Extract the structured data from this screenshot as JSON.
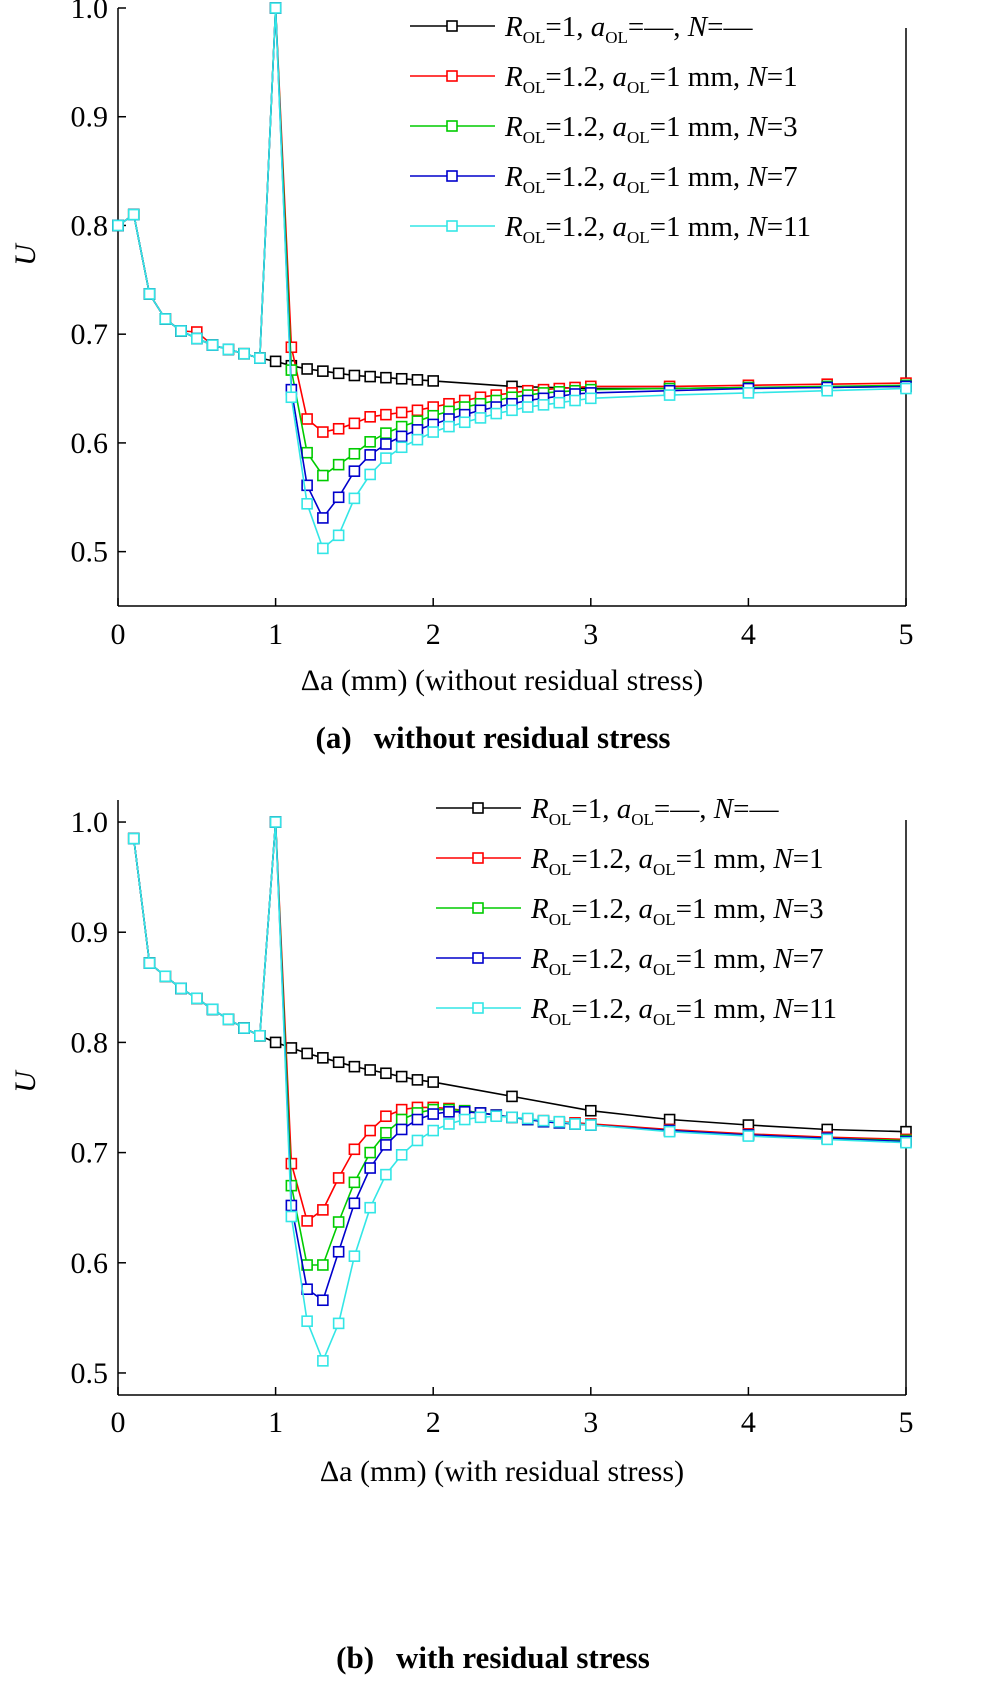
{
  "panels": [
    {
      "caption_letter": "(a)",
      "caption_text": "without residual stress",
      "chart_data": {
        "type": "line",
        "title": "",
        "xlabel_symbol": "Δa",
        "xlabel_rest": "(mm) (without residual stress)",
        "ylabel": "U",
        "xlim": [
          0,
          5
        ],
        "ylim": [
          0.45,
          1.0
        ],
        "xticks": [
          0,
          1,
          2,
          3,
          4,
          5
        ],
        "yticks": [
          0.5,
          0.6,
          0.7,
          0.8,
          0.9,
          1.0
        ],
        "ytick_labels": [
          "0.5",
          "0.6",
          "0.7",
          "0.8",
          "0.9",
          "1.0"
        ],
        "grid": false,
        "legend_position": "top-right",
        "series": [
          {
            "name": "R_OL=1, a_OL=—, N=—",
            "legend": {
              "r_val": "1",
              "a_val": "—",
              "a_unit": "",
              "n_val": "—"
            },
            "color": "#000000",
            "x": [
              0,
              0.1,
              0.2,
              0.3,
              0.4,
              0.5,
              0.6,
              0.7,
              0.8,
              0.9,
              1.0,
              1.1,
              1.2,
              1.3,
              1.4,
              1.5,
              1.6,
              1.7,
              1.8,
              1.9,
              2.0,
              2.5,
              3.0,
              3.5,
              4.0,
              4.5,
              5.0
            ],
            "y": [
              0.8,
              0.81,
              0.737,
              0.714,
              0.703,
              0.696,
              0.69,
              0.686,
              0.682,
              0.678,
              0.675,
              0.671,
              0.668,
              0.666,
              0.664,
              0.662,
              0.661,
              0.66,
              0.659,
              0.658,
              0.657,
              0.652,
              0.65,
              0.65,
              0.651,
              0.651,
              0.652
            ]
          },
          {
            "name": "R_OL=1.2, a_OL=1 mm, N=1",
            "legend": {
              "r_val": "1.2",
              "a_val": "1",
              "a_unit": " mm",
              "n_val": "1"
            },
            "color": "#ff0000",
            "x": [
              0,
              0.1,
              0.2,
              0.3,
              0.4,
              0.5,
              0.6,
              0.7,
              0.8,
              0.9,
              1.0,
              1.1,
              1.2,
              1.3,
              1.4,
              1.5,
              1.6,
              1.7,
              1.8,
              1.9,
              2.0,
              2.1,
              2.2,
              2.3,
              2.4,
              2.5,
              2.6,
              2.7,
              2.8,
              2.9,
              3.0,
              3.5,
              4.0,
              4.5,
              5.0
            ],
            "y": [
              0.8,
              0.81,
              0.737,
              0.714,
              0.703,
              0.702,
              0.69,
              0.686,
              0.682,
              0.678,
              1.0,
              0.688,
              0.622,
              0.61,
              0.613,
              0.618,
              0.624,
              0.626,
              0.628,
              0.63,
              0.633,
              0.636,
              0.639,
              0.642,
              0.644,
              0.646,
              0.648,
              0.649,
              0.65,
              0.651,
              0.652,
              0.652,
              0.653,
              0.654,
              0.655
            ]
          },
          {
            "name": "R_OL=1.2, a_OL=1 mm, N=3",
            "legend": {
              "r_val": "1.2",
              "a_val": "1",
              "a_unit": " mm",
              "n_val": "3"
            },
            "color": "#00cc00",
            "x": [
              0,
              0.1,
              0.2,
              0.3,
              0.4,
              0.5,
              0.6,
              0.7,
              0.8,
              0.9,
              1.0,
              1.1,
              1.2,
              1.3,
              1.4,
              1.5,
              1.6,
              1.7,
              1.8,
              1.9,
              2.0,
              2.1,
              2.2,
              2.3,
              2.4,
              2.5,
              2.6,
              2.7,
              2.8,
              2.9,
              3.0,
              3.5,
              4.0,
              4.5,
              5.0
            ],
            "y": [
              0.8,
              0.81,
              0.737,
              0.714,
              0.703,
              0.696,
              0.69,
              0.686,
              0.682,
              0.678,
              1.0,
              0.667,
              0.591,
              0.57,
              0.58,
              0.59,
              0.601,
              0.609,
              0.615,
              0.62,
              0.625,
              0.629,
              0.633,
              0.636,
              0.639,
              0.642,
              0.644,
              0.646,
              0.647,
              0.648,
              0.649,
              0.65,
              0.651,
              0.652,
              0.653
            ]
          },
          {
            "name": "R_OL=1.2, a_OL=1 mm, N=7",
            "legend": {
              "r_val": "1.2",
              "a_val": "1",
              "a_unit": " mm",
              "n_val": "7"
            },
            "color": "#0000cc",
            "x": [
              0,
              0.1,
              0.2,
              0.3,
              0.4,
              0.5,
              0.6,
              0.7,
              0.8,
              0.9,
              1.0,
              1.1,
              1.2,
              1.3,
              1.4,
              1.5,
              1.6,
              1.7,
              1.8,
              1.9,
              2.0,
              2.1,
              2.2,
              2.3,
              2.4,
              2.5,
              2.6,
              2.7,
              2.8,
              2.9,
              3.0,
              3.5,
              4.0,
              4.5,
              5.0
            ],
            "y": [
              0.8,
              0.81,
              0.737,
              0.714,
              0.703,
              0.696,
              0.69,
              0.686,
              0.682,
              0.678,
              1.0,
              0.649,
              0.561,
              0.531,
              0.55,
              0.574,
              0.589,
              0.599,
              0.606,
              0.612,
              0.617,
              0.622,
              0.626,
              0.63,
              0.633,
              0.636,
              0.639,
              0.641,
              0.643,
              0.645,
              0.646,
              0.648,
              0.65,
              0.651,
              0.652
            ]
          },
          {
            "name": "R_OL=1.2, a_OL=1 mm, N=11",
            "legend": {
              "r_val": "1.2",
              "a_val": "1",
              "a_unit": " mm",
              "n_val": "11"
            },
            "color": "#33e6e6",
            "x": [
              0,
              0.1,
              0.2,
              0.3,
              0.4,
              0.5,
              0.6,
              0.7,
              0.8,
              0.9,
              1.0,
              1.1,
              1.2,
              1.3,
              1.4,
              1.5,
              1.6,
              1.7,
              1.8,
              1.9,
              2.0,
              2.1,
              2.2,
              2.3,
              2.4,
              2.5,
              2.6,
              2.7,
              2.8,
              2.9,
              3.0,
              3.5,
              4.0,
              4.5,
              5.0
            ],
            "y": [
              0.8,
              0.81,
              0.737,
              0.714,
              0.703,
              0.696,
              0.69,
              0.686,
              0.682,
              0.678,
              1.0,
              0.642,
              0.544,
              0.503,
              0.515,
              0.549,
              0.571,
              0.586,
              0.596,
              0.603,
              0.61,
              0.615,
              0.619,
              0.623,
              0.627,
              0.63,
              0.633,
              0.635,
              0.637,
              0.639,
              0.641,
              0.644,
              0.646,
              0.648,
              0.65
            ]
          }
        ]
      }
    },
    {
      "caption_letter": "(b)",
      "caption_text": "with residual stress",
      "chart_data": {
        "type": "line",
        "title": "",
        "xlabel_symbol": "Δa",
        "xlabel_rest": "(mm) (with residual stress)",
        "ylabel": "U",
        "xlim": [
          0,
          5
        ],
        "ylim": [
          0.48,
          1.02
        ],
        "xticks": [
          0,
          1,
          2,
          3,
          4,
          5
        ],
        "yticks": [
          0.5,
          0.6,
          0.7,
          0.8,
          0.9,
          1.0
        ],
        "ytick_labels": [
          "0.5",
          "0.6",
          "0.7",
          "0.8",
          "0.9",
          "1.0"
        ],
        "grid": false,
        "legend_position": "top-right",
        "series": [
          {
            "name": "R_OL=1, a_OL=—, N=—",
            "legend": {
              "r_val": "1",
              "a_val": "—",
              "a_unit": "",
              "n_val": "—"
            },
            "color": "#000000",
            "x": [
              0.1,
              0.2,
              0.3,
              0.4,
              0.5,
              0.6,
              0.7,
              0.8,
              0.9,
              1.0,
              1.1,
              1.2,
              1.3,
              1.4,
              1.5,
              1.6,
              1.7,
              1.8,
              1.9,
              2.0,
              2.5,
              3.0,
              3.5,
              4.0,
              4.5,
              5.0
            ],
            "y": [
              0.985,
              0.872,
              0.86,
              0.849,
              0.84,
              0.83,
              0.821,
              0.813,
              0.806,
              0.8,
              0.795,
              0.79,
              0.786,
              0.782,
              0.778,
              0.775,
              0.772,
              0.769,
              0.766,
              0.764,
              0.751,
              0.738,
              0.73,
              0.725,
              0.721,
              0.719
            ]
          },
          {
            "name": "R_OL=1.2, a_OL=1 mm, N=1",
            "legend": {
              "r_val": "1.2",
              "a_val": "1",
              "a_unit": " mm",
              "n_val": "1"
            },
            "color": "#ff0000",
            "x": [
              0.1,
              0.2,
              0.3,
              0.4,
              0.5,
              0.6,
              0.7,
              0.8,
              0.9,
              1.0,
              1.1,
              1.2,
              1.3,
              1.4,
              1.5,
              1.6,
              1.7,
              1.8,
              1.9,
              2.0,
              2.1,
              2.2,
              2.3,
              2.4,
              2.5,
              2.6,
              2.7,
              2.8,
              2.9,
              3.0,
              3.5,
              4.0,
              4.5,
              5.0
            ],
            "y": [
              0.985,
              0.872,
              0.86,
              0.849,
              0.84,
              0.83,
              0.821,
              0.813,
              0.806,
              1.0,
              0.69,
              0.638,
              0.648,
              0.677,
              0.703,
              0.72,
              0.733,
              0.739,
              0.741,
              0.741,
              0.74,
              0.738,
              0.736,
              0.734,
              0.732,
              0.73,
              0.729,
              0.728,
              0.727,
              0.726,
              0.721,
              0.717,
              0.714,
              0.712
            ]
          },
          {
            "name": "R_OL=1.2, a_OL=1 mm, N=3",
            "legend": {
              "r_val": "1.2",
              "a_val": "1",
              "a_unit": " mm",
              "n_val": "3"
            },
            "color": "#00cc00",
            "x": [
              0.1,
              0.2,
              0.3,
              0.4,
              0.5,
              0.6,
              0.7,
              0.8,
              0.9,
              1.0,
              1.1,
              1.2,
              1.3,
              1.4,
              1.5,
              1.6,
              1.7,
              1.8,
              1.9,
              2.0,
              2.1,
              2.2,
              2.3,
              2.4,
              2.5,
              2.6,
              2.7,
              2.8,
              2.9,
              3.0,
              3.5,
              4.0,
              4.5,
              5.0
            ],
            "y": [
              0.985,
              0.872,
              0.86,
              0.849,
              0.84,
              0.83,
              0.821,
              0.813,
              0.806,
              1.0,
              0.67,
              0.598,
              0.598,
              0.637,
              0.673,
              0.7,
              0.718,
              0.73,
              0.736,
              0.739,
              0.739,
              0.738,
              0.736,
              0.734,
              0.732,
              0.73,
              0.728,
              0.727,
              0.726,
              0.725,
              0.72,
              0.716,
              0.713,
              0.711
            ]
          },
          {
            "name": "R_OL=1.2, a_OL=1 mm, N=7",
            "legend": {
              "r_val": "1.2",
              "a_val": "1",
              "a_unit": " mm",
              "n_val": "7"
            },
            "color": "#0000cc",
            "x": [
              0.1,
              0.2,
              0.3,
              0.4,
              0.5,
              0.6,
              0.7,
              0.8,
              0.9,
              1.0,
              1.1,
              1.2,
              1.3,
              1.4,
              1.5,
              1.6,
              1.7,
              1.8,
              1.9,
              2.0,
              2.1,
              2.2,
              2.3,
              2.4,
              2.5,
              2.6,
              2.7,
              2.8,
              2.9,
              3.0,
              3.5,
              4.0,
              4.5,
              5.0
            ],
            "y": [
              0.985,
              0.872,
              0.86,
              0.849,
              0.84,
              0.83,
              0.821,
              0.813,
              0.806,
              1.0,
              0.652,
              0.576,
              0.566,
              0.61,
              0.654,
              0.686,
              0.707,
              0.721,
              0.73,
              0.735,
              0.737,
              0.737,
              0.736,
              0.734,
              0.732,
              0.73,
              0.728,
              0.727,
              0.726,
              0.725,
              0.72,
              0.716,
              0.713,
              0.71
            ]
          },
          {
            "name": "R_OL=1.2, a_OL=1 mm, N=11",
            "legend": {
              "r_val": "1.2",
              "a_val": "1",
              "a_unit": " mm",
              "n_val": "11"
            },
            "color": "#33e6e6",
            "x": [
              0.1,
              0.2,
              0.3,
              0.4,
              0.5,
              0.6,
              0.7,
              0.8,
              0.9,
              1.0,
              1.1,
              1.2,
              1.3,
              1.4,
              1.5,
              1.6,
              1.7,
              1.8,
              1.9,
              2.0,
              2.1,
              2.2,
              2.3,
              2.4,
              2.5,
              2.6,
              2.7,
              2.8,
              2.9,
              3.0,
              3.5,
              4.0,
              4.5,
              5.0
            ],
            "y": [
              0.985,
              0.872,
              0.86,
              0.849,
              0.84,
              0.83,
              0.821,
              0.813,
              0.806,
              1.0,
              0.642,
              0.547,
              0.511,
              0.545,
              0.606,
              0.65,
              0.68,
              0.698,
              0.711,
              0.72,
              0.726,
              0.73,
              0.732,
              0.733,
              0.732,
              0.731,
              0.729,
              0.728,
              0.726,
              0.725,
              0.719,
              0.715,
              0.712,
              0.709
            ]
          }
        ]
      }
    }
  ]
}
